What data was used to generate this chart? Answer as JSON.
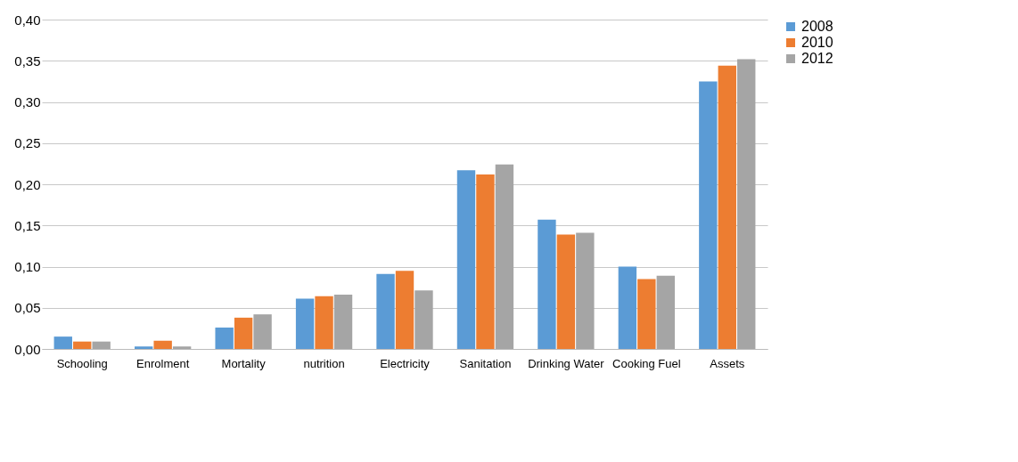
{
  "chart_data": {
    "type": "bar",
    "categories": [
      "Schooling",
      "Enrolment",
      "Mortality",
      "nutrition",
      "Electricity",
      "Sanitation",
      "Drinking Water",
      "Cooking Fuel",
      "Assets"
    ],
    "series": [
      {
        "name": "2008",
        "color": "#5b9bd5",
        "values": [
          0.015,
          0.003,
          0.026,
          0.061,
          0.091,
          0.217,
          0.157,
          0.1,
          0.325
        ]
      },
      {
        "name": "2010",
        "color": "#ed7d31",
        "values": [
          0.009,
          0.01,
          0.038,
          0.064,
          0.095,
          0.212,
          0.139,
          0.085,
          0.344
        ]
      },
      {
        "name": "2012",
        "color": "#a5a5a5",
        "values": [
          0.009,
          0.003,
          0.042,
          0.066,
          0.071,
          0.224,
          0.141,
          0.089,
          0.352
        ]
      }
    ],
    "ylim": [
      0,
      0.4
    ],
    "yticks": [
      {
        "value": 0,
        "label": "0,00"
      },
      {
        "value": 0.05,
        "label": "0,05"
      },
      {
        "value": 0.1,
        "label": "0,10"
      },
      {
        "value": 0.15,
        "label": "0,15"
      },
      {
        "value": 0.2,
        "label": "0,20"
      },
      {
        "value": 0.25,
        "label": "0,25"
      },
      {
        "value": 0.3,
        "label": "0,30"
      },
      {
        "value": 0.35,
        "label": "0,35"
      },
      {
        "value": 0.4,
        "label": "0,40"
      }
    ],
    "grid": "y",
    "legend": "right"
  }
}
